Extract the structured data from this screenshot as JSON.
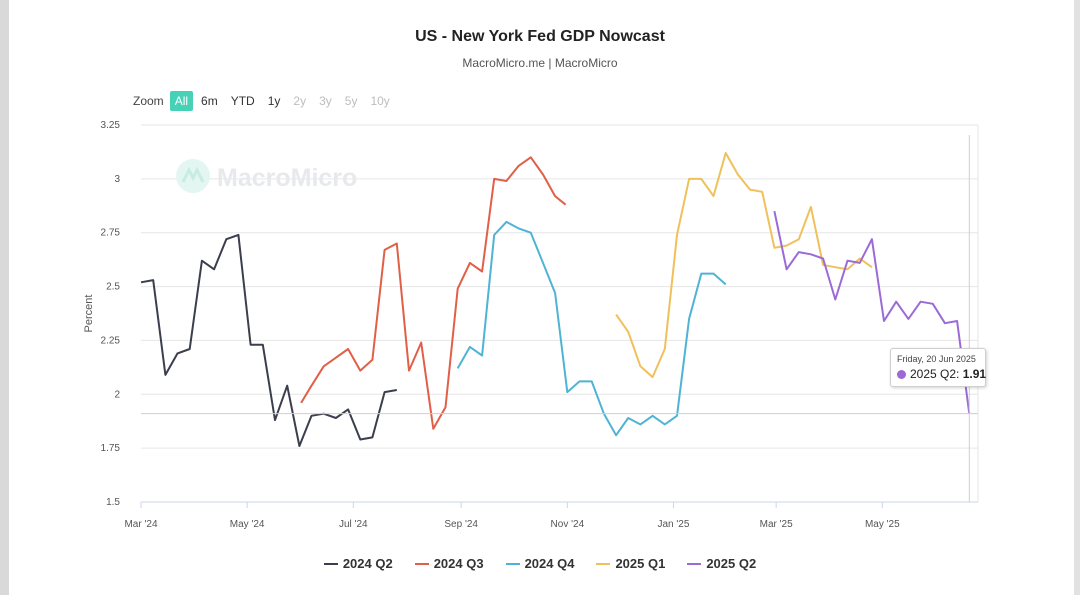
{
  "header": {
    "title": "US - New York Fed GDP Nowcast",
    "subtitle": "MacroMicro.me | MacroMicro"
  },
  "watermark": "MacroMicro",
  "zoom": {
    "label": "Zoom",
    "buttons": [
      {
        "label": "All",
        "state": "active"
      },
      {
        "label": "6m",
        "state": "normal"
      },
      {
        "label": "YTD",
        "state": "normal"
      },
      {
        "label": "1y",
        "state": "normal"
      },
      {
        "label": "2y",
        "state": "disabled"
      },
      {
        "label": "3y",
        "state": "disabled"
      },
      {
        "label": "5y",
        "state": "disabled"
      },
      {
        "label": "10y",
        "state": "disabled"
      }
    ]
  },
  "tooltip": {
    "date": "Friday, 20 Jun 2025",
    "series": "2025 Q2: ",
    "value": "1.91"
  },
  "chart_data": {
    "type": "line",
    "ylabel": "Percent",
    "xlabel": "",
    "ylim": [
      1.5,
      3.25
    ],
    "yticks": [
      "1.5",
      "1.75",
      "2",
      "2.25",
      "2.5",
      "2.75",
      "3",
      "3.25"
    ],
    "xlim": [
      "2024-03-01",
      "2025-06-25"
    ],
    "xticks": [
      {
        "date": "2024-03-01",
        "label": "Mar '24"
      },
      {
        "date": "2024-05-01",
        "label": "May '24"
      },
      {
        "date": "2024-07-01",
        "label": "Jul '24"
      },
      {
        "date": "2024-09-01",
        "label": "Sep '24"
      },
      {
        "date": "2024-11-01",
        "label": "Nov '24"
      },
      {
        "date": "2025-01-01",
        "label": "Jan '25"
      },
      {
        "date": "2025-03-01",
        "label": "Mar '25"
      },
      {
        "date": "2025-05-01",
        "label": "May '25"
      }
    ],
    "grid": true,
    "legend": "bottom",
    "highlight": {
      "series": "2025 Q2",
      "date": "2025-06-20",
      "value": 1.91
    },
    "series": [
      {
        "name": "2024 Q2",
        "color": "#3b3e4c",
        "points": [
          [
            "2024-03-01",
            2.52
          ],
          [
            "2024-03-08",
            2.53
          ],
          [
            "2024-03-15",
            2.09
          ],
          [
            "2024-03-22",
            2.19
          ],
          [
            "2024-03-29",
            2.21
          ],
          [
            "2024-04-05",
            2.62
          ],
          [
            "2024-04-12",
            2.58
          ],
          [
            "2024-04-19",
            2.72
          ],
          [
            "2024-04-26",
            2.74
          ],
          [
            "2024-05-03",
            2.23
          ],
          [
            "2024-05-10",
            2.23
          ],
          [
            "2024-05-17",
            1.88
          ],
          [
            "2024-05-24",
            2.04
          ],
          [
            "2024-05-31",
            1.76
          ],
          [
            "2024-06-07",
            1.9
          ],
          [
            "2024-06-14",
            1.91
          ],
          [
            "2024-06-21",
            1.89
          ],
          [
            "2024-06-28",
            1.93
          ],
          [
            "2024-07-05",
            1.79
          ],
          [
            "2024-07-12",
            1.8
          ],
          [
            "2024-07-19",
            2.01
          ],
          [
            "2024-07-26",
            2.02
          ]
        ]
      },
      {
        "name": "2024 Q3",
        "color": "#e15f47",
        "points": [
          [
            "2024-06-01",
            1.96
          ],
          [
            "2024-06-07",
            2.04
          ],
          [
            "2024-06-14",
            2.13
          ],
          [
            "2024-06-21",
            2.17
          ],
          [
            "2024-06-28",
            2.21
          ],
          [
            "2024-07-05",
            2.11
          ],
          [
            "2024-07-12",
            2.16
          ],
          [
            "2024-07-19",
            2.67
          ],
          [
            "2024-07-26",
            2.7
          ],
          [
            "2024-08-02",
            2.11
          ],
          [
            "2024-08-09",
            2.24
          ],
          [
            "2024-08-16",
            1.84
          ],
          [
            "2024-08-23",
            1.94
          ],
          [
            "2024-08-30",
            2.49
          ],
          [
            "2024-09-06",
            2.61
          ],
          [
            "2024-09-13",
            2.57
          ],
          [
            "2024-09-20",
            3.0
          ],
          [
            "2024-09-27",
            2.99
          ],
          [
            "2024-10-04",
            3.06
          ],
          [
            "2024-10-11",
            3.1
          ],
          [
            "2024-10-18",
            3.02
          ],
          [
            "2024-10-25",
            2.92
          ],
          [
            "2024-10-31",
            2.88
          ]
        ]
      },
      {
        "name": "2024 Q4",
        "color": "#4fb3d4",
        "points": [
          [
            "2024-08-30",
            2.12
          ],
          [
            "2024-09-06",
            2.22
          ],
          [
            "2024-09-13",
            2.18
          ],
          [
            "2024-09-20",
            2.74
          ],
          [
            "2024-09-27",
            2.8
          ],
          [
            "2024-10-04",
            2.77
          ],
          [
            "2024-10-11",
            2.75
          ],
          [
            "2024-10-18",
            2.61
          ],
          [
            "2024-10-25",
            2.47
          ],
          [
            "2024-11-01",
            2.01
          ],
          [
            "2024-11-08",
            2.06
          ],
          [
            "2024-11-15",
            2.06
          ],
          [
            "2024-11-22",
            1.91
          ],
          [
            "2024-11-29",
            1.81
          ],
          [
            "2024-12-06",
            1.89
          ],
          [
            "2024-12-13",
            1.86
          ],
          [
            "2024-12-20",
            1.9
          ],
          [
            "2024-12-27",
            1.86
          ],
          [
            "2025-01-03",
            1.9
          ],
          [
            "2025-01-10",
            2.35
          ],
          [
            "2025-01-17",
            2.56
          ],
          [
            "2025-01-24",
            2.56
          ],
          [
            "2025-01-31",
            2.51
          ]
        ]
      },
      {
        "name": "2025 Q1",
        "color": "#f0c05a",
        "points": [
          [
            "2024-11-29",
            2.37
          ],
          [
            "2024-12-06",
            2.29
          ],
          [
            "2024-12-13",
            2.13
          ],
          [
            "2024-12-20",
            2.08
          ],
          [
            "2024-12-27",
            2.21
          ],
          [
            "2025-01-03",
            2.74
          ],
          [
            "2025-01-10",
            3.0
          ],
          [
            "2025-01-17",
            3.0
          ],
          [
            "2025-01-24",
            2.92
          ],
          [
            "2025-01-31",
            3.12
          ],
          [
            "2025-02-07",
            3.02
          ],
          [
            "2025-02-14",
            2.95
          ],
          [
            "2025-02-21",
            2.94
          ],
          [
            "2025-02-28",
            2.68
          ],
          [
            "2025-03-07",
            2.69
          ],
          [
            "2025-03-14",
            2.72
          ],
          [
            "2025-03-21",
            2.87
          ],
          [
            "2025-03-28",
            2.6
          ],
          [
            "2025-04-04",
            2.59
          ],
          [
            "2025-04-11",
            2.58
          ],
          [
            "2025-04-18",
            2.63
          ],
          [
            "2025-04-25",
            2.59
          ]
        ]
      },
      {
        "name": "2025 Q2",
        "color": "#9b6ad6",
        "points": [
          [
            "2025-02-28",
            2.85
          ],
          [
            "2025-03-07",
            2.58
          ],
          [
            "2025-03-14",
            2.66
          ],
          [
            "2025-03-21",
            2.65
          ],
          [
            "2025-03-28",
            2.63
          ],
          [
            "2025-04-04",
            2.44
          ],
          [
            "2025-04-11",
            2.62
          ],
          [
            "2025-04-18",
            2.61
          ],
          [
            "2025-04-25",
            2.72
          ],
          [
            "2025-05-02",
            2.34
          ],
          [
            "2025-05-09",
            2.43
          ],
          [
            "2025-05-16",
            2.35
          ],
          [
            "2025-05-23",
            2.43
          ],
          [
            "2025-05-30",
            2.42
          ],
          [
            "2025-06-06",
            2.33
          ],
          [
            "2025-06-13",
            2.34
          ],
          [
            "2025-06-20",
            1.91
          ]
        ]
      }
    ]
  }
}
